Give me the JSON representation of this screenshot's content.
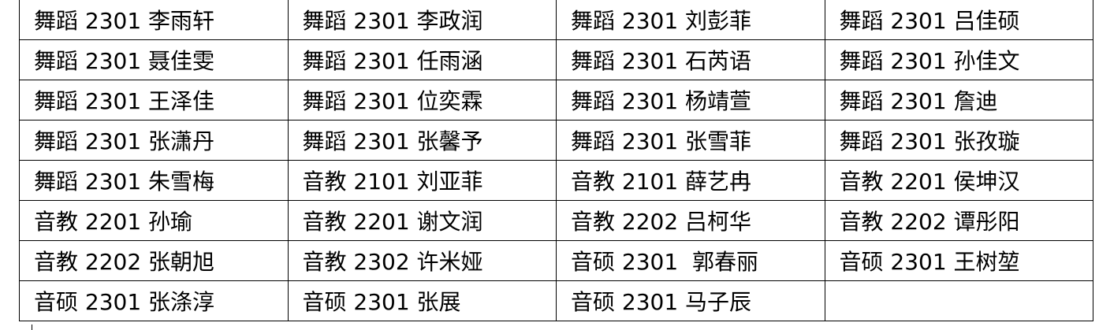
{
  "table": {
    "rows": [
      [
        "舞蹈 2301 李雨轩",
        "舞蹈 2301 李政润",
        "舞蹈 2301 刘彭菲",
        "舞蹈 2301 吕佳硕"
      ],
      [
        "舞蹈 2301 聂佳雯",
        "舞蹈 2301 任雨涵",
        "舞蹈 2301 石芮语",
        "舞蹈 2301 孙佳文"
      ],
      [
        "舞蹈 2301 王泽佳",
        "舞蹈 2301 位奕霖",
        "舞蹈 2301 杨靖萱",
        "舞蹈 2301 詹迪"
      ],
      [
        "舞蹈 2301 张潇丹",
        "舞蹈 2301 张馨予",
        "舞蹈 2301 张雪菲",
        "舞蹈 2301 张孜璇"
      ],
      [
        "舞蹈 2301 朱雪梅",
        "音教 2101 刘亚菲",
        "音教 2101 薛艺冉",
        "音教 2201 侯坤汉"
      ],
      [
        "音教 2201 孙瑜",
        "音教 2201 谢文润",
        "音教 2202 吕柯华",
        "音教 2202 谭彤阳"
      ],
      [
        "音教 2202 张朝旭",
        "音教 2302 许米娅",
        "音硕 2301  郭春丽",
        "音硕 2301 王树堃"
      ],
      [
        "音硕 2301 张涤淳",
        "音硕 2301 张展",
        "音硕 2301 马子辰",
        ""
      ]
    ]
  }
}
